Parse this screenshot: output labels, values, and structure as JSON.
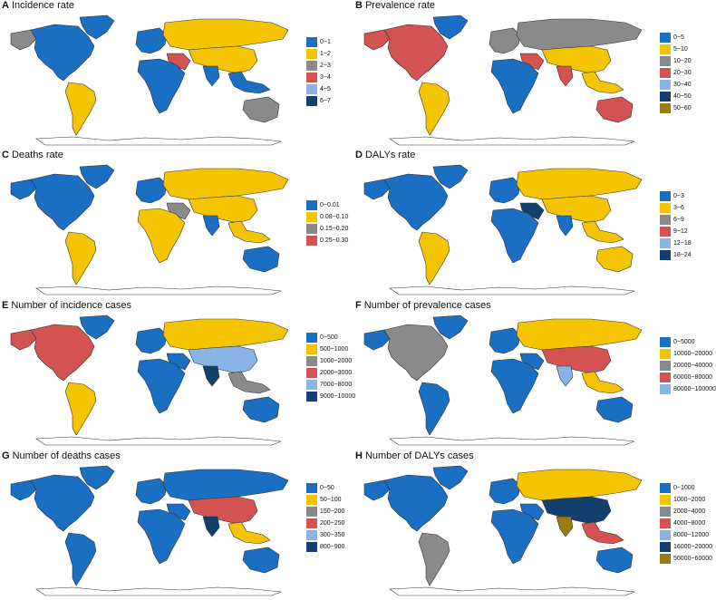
{
  "colors": {
    "c1": "#1a6fc2",
    "c2": "#f5c400",
    "c3": "#8a8a8a",
    "c4": "#d35252",
    "c5": "#8ab4e8",
    "c6": "#123f6d",
    "c7": "#9a7b10",
    "land_outline": "#333333"
  },
  "panels": [
    {
      "letter": "A",
      "title": "Incidence rate",
      "legend": [
        {
          "label": "0~1",
          "color": "#1a6fc2"
        },
        {
          "label": "1~2",
          "color": "#f5c400"
        },
        {
          "label": "2~3",
          "color": "#8a8a8a"
        },
        {
          "label": "3~4",
          "color": "#d35252"
        },
        {
          "label": "4~5",
          "color": "#8ab4e8"
        },
        {
          "label": "6~7",
          "color": "#123f6d"
        }
      ],
      "regions": {
        "na": "#1a6fc2",
        "alaska": "#8a8a8a",
        "greenland": "#1a6fc2",
        "sa": "#f5c400",
        "eu": "#1a6fc2",
        "af": "#1a6fc2",
        "ru": "#f5c400",
        "asia": "#f5c400",
        "india": "#1a6fc2",
        "sea": "#1a6fc2",
        "au": "#8a8a8a",
        "mideast": "#d35252"
      }
    },
    {
      "letter": "B",
      "title": "Prevalence rate",
      "legend": [
        {
          "label": "0~5",
          "color": "#1a6fc2"
        },
        {
          "label": "5~10",
          "color": "#f5c400"
        },
        {
          "label": "10~20",
          "color": "#8a8a8a"
        },
        {
          "label": "20~30",
          "color": "#d35252"
        },
        {
          "label": "30~40",
          "color": "#8ab4e8"
        },
        {
          "label": "40~50",
          "color": "#123f6d"
        },
        {
          "label": "50~60",
          "color": "#9a7b10"
        }
      ],
      "regions": {
        "na": "#d35252",
        "alaska": "#d35252",
        "greenland": "#1a6fc2",
        "sa": "#f5c400",
        "eu": "#8a8a8a",
        "af": "#1a6fc2",
        "ru": "#8a8a8a",
        "asia": "#f5c400",
        "india": "#d35252",
        "sea": "#f5c400",
        "au": "#d35252",
        "mideast": "#d35252"
      }
    },
    {
      "letter": "C",
      "title": "Deaths rate",
      "legend": [
        {
          "label": "0~0.01",
          "color": "#1a6fc2"
        },
        {
          "label": "0.08~0.10",
          "color": "#f5c400"
        },
        {
          "label": "0.15~0.20",
          "color": "#8a8a8a"
        },
        {
          "label": "0.25~0.30",
          "color": "#d35252"
        }
      ],
      "regions": {
        "na": "#1a6fc2",
        "alaska": "#1a6fc2",
        "greenland": "#1a6fc2",
        "sa": "#f5c400",
        "eu": "#1a6fc2",
        "af": "#f5c400",
        "ru": "#f5c400",
        "asia": "#f5c400",
        "india": "#1a6fc2",
        "sea": "#f5c400",
        "au": "#1a6fc2",
        "mideast": "#8a8a8a"
      }
    },
    {
      "letter": "D",
      "title": "DALYs rate",
      "legend": [
        {
          "label": "0~3",
          "color": "#1a6fc2"
        },
        {
          "label": "3~6",
          "color": "#f5c400"
        },
        {
          "label": "6~9",
          "color": "#8a8a8a"
        },
        {
          "label": "9~12",
          "color": "#d35252"
        },
        {
          "label": "12~18",
          "color": "#8ab4e8"
        },
        {
          "label": "18~24",
          "color": "#123f6d"
        }
      ],
      "regions": {
        "na": "#1a6fc2",
        "alaska": "#1a6fc2",
        "greenland": "#1a6fc2",
        "sa": "#f5c400",
        "eu": "#1a6fc2",
        "af": "#1a6fc2",
        "ru": "#f5c400",
        "asia": "#f5c400",
        "india": "#1a6fc2",
        "sea": "#f5c400",
        "au": "#f5c400",
        "mideast": "#123f6d"
      }
    },
    {
      "letter": "E",
      "title": "Number of incidence cases",
      "legend": [
        {
          "label": "0~500",
          "color": "#1a6fc2"
        },
        {
          "label": "500~1000",
          "color": "#f5c400"
        },
        {
          "label": "1000~2000",
          "color": "#8a8a8a"
        },
        {
          "label": "2000~3000",
          "color": "#d35252"
        },
        {
          "label": "7000~8000",
          "color": "#8ab4e8"
        },
        {
          "label": "9000~10000",
          "color": "#123f6d"
        }
      ],
      "regions": {
        "na": "#d35252",
        "alaska": "#d35252",
        "greenland": "#1a6fc2",
        "sa": "#f5c400",
        "eu": "#1a6fc2",
        "af": "#1a6fc2",
        "ru": "#f5c400",
        "asia": "#8ab4e8",
        "india": "#123f6d",
        "sea": "#8a8a8a",
        "au": "#1a6fc2",
        "mideast": "#1a6fc2"
      }
    },
    {
      "letter": "F",
      "title": "Number of prevalence cases",
      "legend": [
        {
          "label": "0~5000",
          "color": "#1a6fc2"
        },
        {
          "label": "10000~20000",
          "color": "#f5c400"
        },
        {
          "label": "20000~40000",
          "color": "#8a8a8a"
        },
        {
          "label": "60000~80000",
          "color": "#d35252"
        },
        {
          "label": "80000~100000",
          "color": "#8ab4e8"
        }
      ],
      "regions": {
        "na": "#8a8a8a",
        "alaska": "#1a6fc2",
        "greenland": "#1a6fc2",
        "sa": "#1a6fc2",
        "eu": "#1a6fc2",
        "af": "#1a6fc2",
        "ru": "#f5c400",
        "asia": "#d35252",
        "india": "#8ab4e8",
        "sea": "#f5c400",
        "au": "#1a6fc2",
        "mideast": "#1a6fc2"
      }
    },
    {
      "letter": "G",
      "title": "Number of deaths cases",
      "legend": [
        {
          "label": "0~50",
          "color": "#1a6fc2"
        },
        {
          "label": "50~100",
          "color": "#f5c400"
        },
        {
          "label": "150~200",
          "color": "#8a8a8a"
        },
        {
          "label": "200~250",
          "color": "#d35252"
        },
        {
          "label": "300~350",
          "color": "#8ab4e8"
        },
        {
          "label": "800~900",
          "color": "#123f6d"
        }
      ],
      "regions": {
        "na": "#1a6fc2",
        "alaska": "#1a6fc2",
        "greenland": "#1a6fc2",
        "sa": "#1a6fc2",
        "eu": "#1a6fc2",
        "af": "#1a6fc2",
        "ru": "#1a6fc2",
        "asia": "#d35252",
        "india": "#123f6d",
        "sea": "#f5c400",
        "au": "#1a6fc2",
        "mideast": "#1a6fc2"
      }
    },
    {
      "letter": "H",
      "title": "Number of DALYs cases",
      "legend": [
        {
          "label": "0~1000",
          "color": "#1a6fc2"
        },
        {
          "label": "1000~2000",
          "color": "#f5c400"
        },
        {
          "label": "2000~4000",
          "color": "#8a8a8a"
        },
        {
          "label": "4000~8000",
          "color": "#d35252"
        },
        {
          "label": "8000~12000",
          "color": "#8ab4e8"
        },
        {
          "label": "16000~20000",
          "color": "#123f6d"
        },
        {
          "label": "50000~60000",
          "color": "#9a7b10"
        }
      ],
      "regions": {
        "na": "#1a6fc2",
        "alaska": "#1a6fc2",
        "greenland": "#1a6fc2",
        "sa": "#8a8a8a",
        "eu": "#1a6fc2",
        "af": "#1a6fc2",
        "ru": "#f5c400",
        "asia": "#123f6d",
        "india": "#9a7b10",
        "sea": "#d35252",
        "au": "#1a6fc2",
        "mideast": "#1a6fc2"
      }
    }
  ]
}
